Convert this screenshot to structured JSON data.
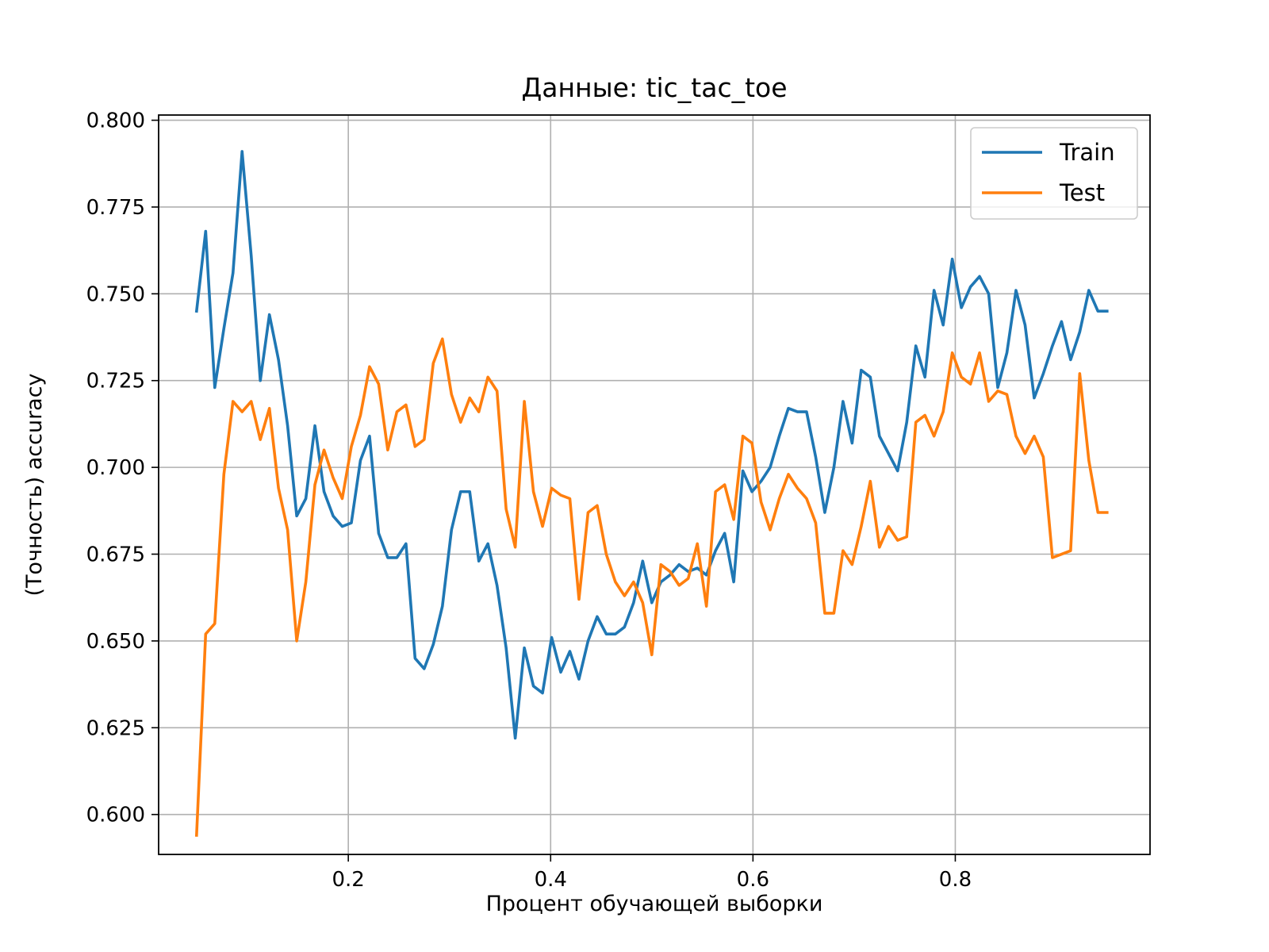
{
  "chart_data": {
    "type": "line",
    "title": "Данные: tic_tac_toe",
    "xlabel": "Процент обучающей выборки",
    "ylabel": "(Точность) accuracy",
    "xlim": [
      0.0125,
      0.9925
    ],
    "ylim": [
      0.5885,
      0.8015
    ],
    "xticks": [
      0.2,
      0.4,
      0.6,
      0.8
    ],
    "xtick_labels": [
      "0.2",
      "0.4",
      "0.6",
      "0.8"
    ],
    "yticks": [
      0.6,
      0.625,
      0.65,
      0.675,
      0.7,
      0.725,
      0.75,
      0.775,
      0.8
    ],
    "ytick_labels": [
      "0.600",
      "0.625",
      "0.650",
      "0.675",
      "0.700",
      "0.725",
      "0.750",
      "0.775",
      "0.800"
    ],
    "grid": true,
    "legend_position": "top-right",
    "x": [
      0.05,
      0.059,
      0.068,
      0.077,
      0.086,
      0.095,
      0.104,
      0.113,
      0.122,
      0.131,
      0.14,
      0.149,
      0.158,
      0.167,
      0.176,
      0.185,
      0.194,
      0.203,
      0.212,
      0.221,
      0.23,
      0.239,
      0.248,
      0.257,
      0.266,
      0.275,
      0.284,
      0.293,
      0.302,
      0.311,
      0.32,
      0.329,
      0.338,
      0.347,
      0.356,
      0.365,
      0.374,
      0.383,
      0.392,
      0.401,
      0.41,
      0.419,
      0.428,
      0.437,
      0.446,
      0.455,
      0.464,
      0.473,
      0.482,
      0.491,
      0.5,
      0.509,
      0.518,
      0.527,
      0.536,
      0.545,
      0.554,
      0.563,
      0.572,
      0.581,
      0.59,
      0.599,
      0.608,
      0.617,
      0.626,
      0.635,
      0.644,
      0.653,
      0.662,
      0.671,
      0.68,
      0.689,
      0.698,
      0.707,
      0.716,
      0.725,
      0.734,
      0.743,
      0.752,
      0.761,
      0.77,
      0.779,
      0.788,
      0.797,
      0.806,
      0.815,
      0.824,
      0.833,
      0.842,
      0.851,
      0.86,
      0.869,
      0.878,
      0.887,
      0.896,
      0.905,
      0.914,
      0.923,
      0.932,
      0.941,
      0.95
    ],
    "series": [
      {
        "name": "Train",
        "color": "#1f77b4",
        "values": [
          0.745,
          0.768,
          0.723,
          0.74,
          0.756,
          0.791,
          0.761,
          0.725,
          0.744,
          0.731,
          0.712,
          0.686,
          0.691,
          0.712,
          0.693,
          0.686,
          0.683,
          0.684,
          0.702,
          0.709,
          0.681,
          0.674,
          0.674,
          0.678,
          0.645,
          0.642,
          0.649,
          0.66,
          0.682,
          0.693,
          0.693,
          0.673,
          0.678,
          0.666,
          0.648,
          0.622,
          0.648,
          0.637,
          0.635,
          0.651,
          0.641,
          0.647,
          0.639,
          0.65,
          0.657,
          0.652,
          0.652,
          0.654,
          0.661,
          0.673,
          0.661,
          0.667,
          0.669,
          0.672,
          0.67,
          0.671,
          0.669,
          0.676,
          0.681,
          0.667,
          0.699,
          0.693,
          0.696,
          0.7,
          0.709,
          0.717,
          0.716,
          0.716,
          0.703,
          0.687,
          0.7,
          0.719,
          0.707,
          0.728,
          0.726,
          0.709,
          0.704,
          0.699,
          0.713,
          0.735,
          0.726,
          0.751,
          0.741,
          0.76,
          0.746,
          0.752,
          0.755,
          0.75,
          0.723,
          0.733,
          0.751,
          0.741,
          0.72,
          0.727,
          0.735,
          0.742,
          0.731,
          0.739,
          0.751,
          0.745,
          0.745
        ]
      },
      {
        "name": "Test",
        "color": "#ff7f0e",
        "values": [
          0.594,
          0.652,
          0.655,
          0.698,
          0.719,
          0.716,
          0.719,
          0.708,
          0.717,
          0.694,
          0.682,
          0.65,
          0.667,
          0.695,
          0.705,
          0.697,
          0.691,
          0.706,
          0.715,
          0.729,
          0.724,
          0.705,
          0.716,
          0.718,
          0.706,
          0.708,
          0.73,
          0.737,
          0.721,
          0.713,
          0.72,
          0.716,
          0.726,
          0.722,
          0.688,
          0.677,
          0.719,
          0.693,
          0.683,
          0.694,
          0.692,
          0.691,
          0.662,
          0.687,
          0.689,
          0.675,
          0.667,
          0.663,
          0.667,
          0.661,
          0.646,
          0.672,
          0.67,
          0.666,
          0.668,
          0.678,
          0.66,
          0.693,
          0.695,
          0.685,
          0.709,
          0.707,
          0.69,
          0.682,
          0.691,
          0.698,
          0.694,
          0.691,
          0.684,
          0.658,
          0.658,
          0.676,
          0.672,
          0.683,
          0.696,
          0.677,
          0.683,
          0.679,
          0.68,
          0.713,
          0.715,
          0.709,
          0.716,
          0.733,
          0.726,
          0.724,
          0.733,
          0.719,
          0.722,
          0.721,
          0.709,
          0.704,
          0.709,
          0.703,
          0.674,
          0.675,
          0.676,
          0.727,
          0.702,
          0.687,
          0.687
        ]
      }
    ]
  }
}
